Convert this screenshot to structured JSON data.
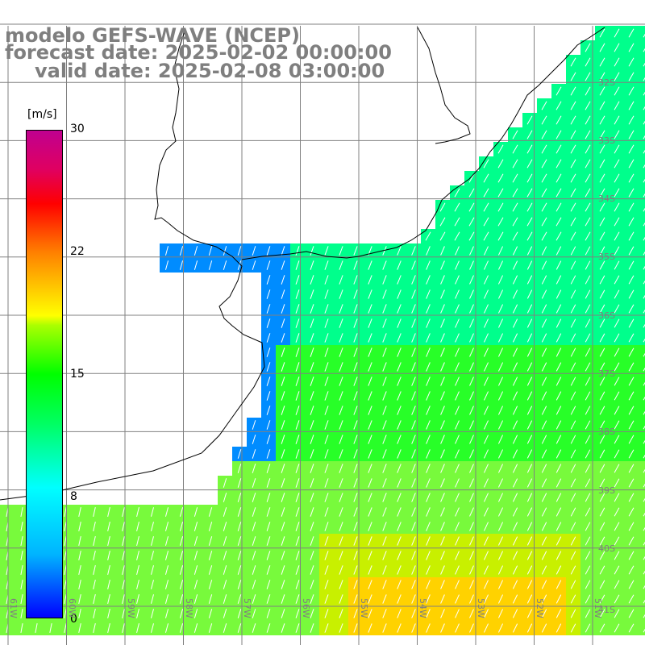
{
  "title": {
    "line1": "modelo GEFS-WAVE (NCEP)",
    "line2": "forecast date: 2025-02-02 00:00:00",
    "line3": "valid date: 2025-02-08 03:00:00"
  },
  "colorbar": {
    "units": "[m/s]",
    "ticks": [
      "30",
      "22",
      "15",
      "8",
      "0"
    ],
    "colors": [
      "#0000ff",
      "#00b4ff",
      "#00ffff",
      "#00ff00",
      "#ffff00",
      "#ff8000",
      "#ff0000",
      "#c00090"
    ]
  },
  "lat_labels": [
    "32S",
    "33S",
    "34S",
    "35S",
    "36S",
    "37S",
    "38S",
    "39S",
    "40S",
    "41S"
  ],
  "lon_labels": [
    "61W",
    "60W",
    "59W",
    "58W",
    "57W",
    "56W",
    "55W",
    "54W",
    "53W",
    "52W",
    "51W"
  ],
  "colors": {
    "land": "#ffffff",
    "coastline": "#000000",
    "grid": "#808080",
    "arrows": "#ffffff",
    "text": "#7f7f7f"
  }
}
